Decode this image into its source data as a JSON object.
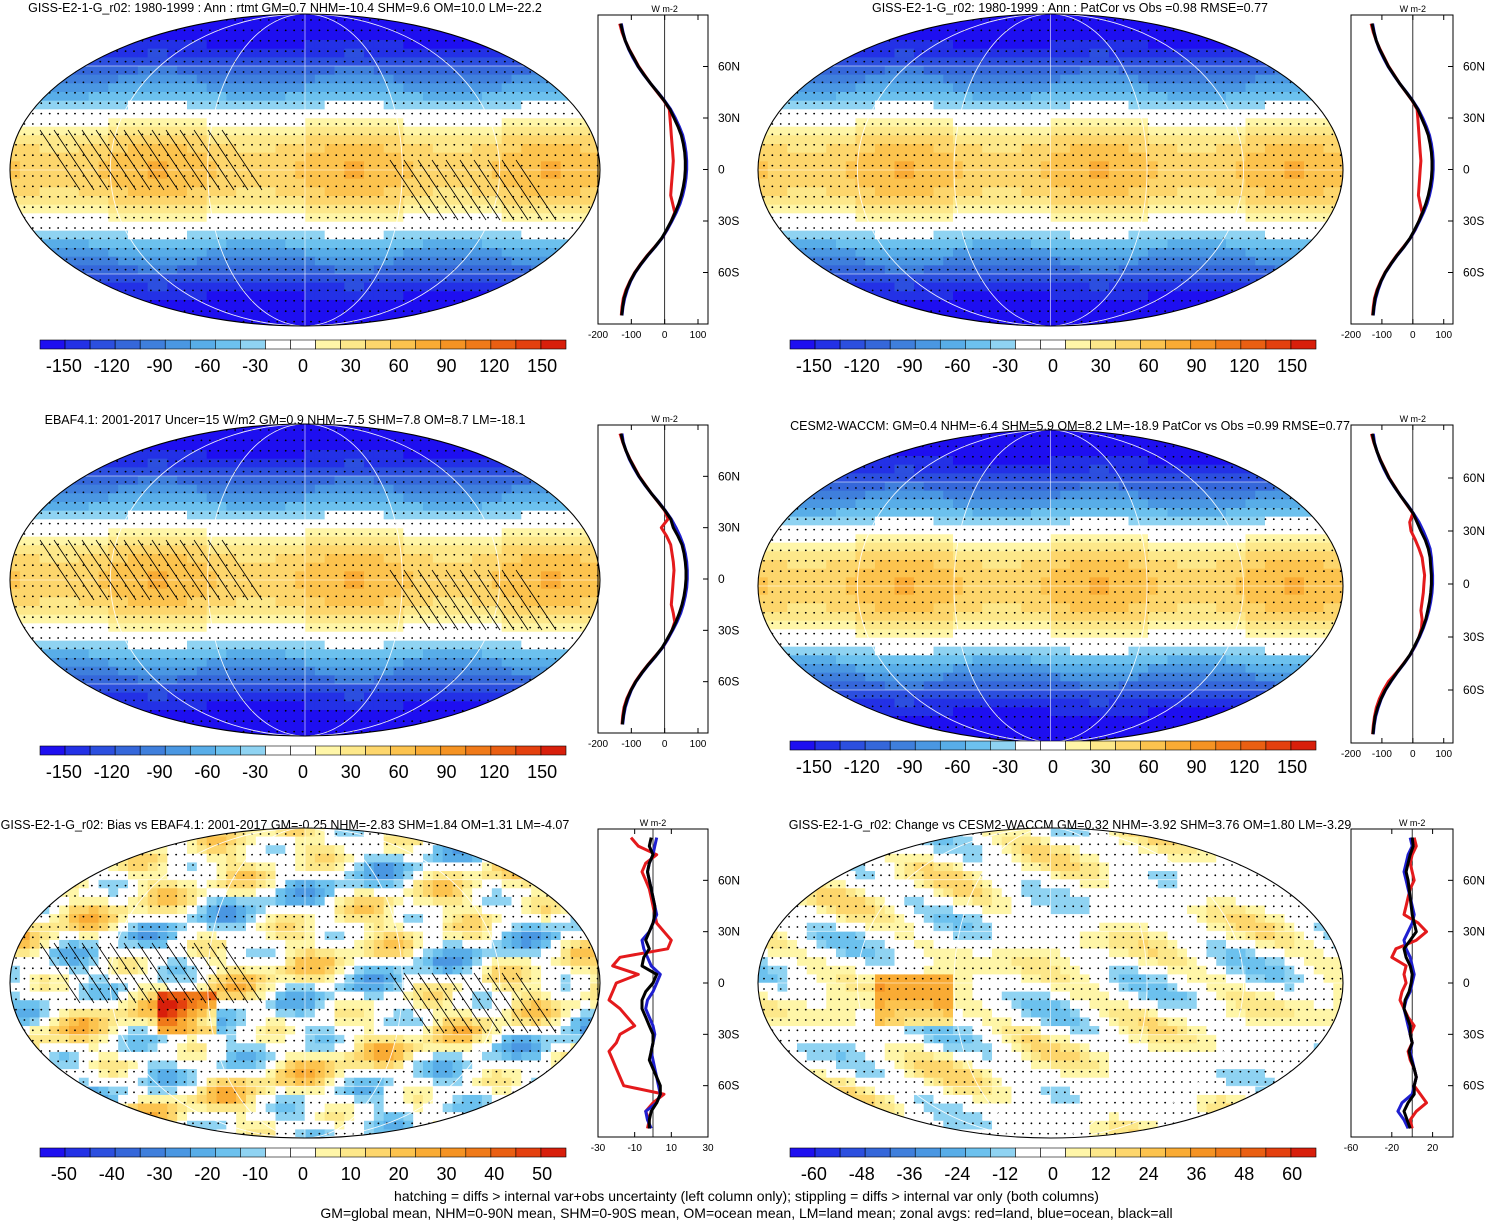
{
  "footnote": {
    "line1": "hatching = diffs > internal var+obs uncertainty (left column only); stippling = diffs > internal var only (both columns)",
    "line2": "GM=global mean, NHM=0-90N mean, SHM=0-90S mean, OM=ocean mean, LM=land mean; zonal avgs: red=land, blue=ocean, black=all"
  },
  "colors": {
    "land": "#e41a1c",
    "ocean": "#1f1fd0",
    "all": "#000000",
    "palette": [
      "#1e0ff0",
      "#2331e6",
      "#2c4fdf",
      "#3567da",
      "#3f7fdc",
      "#4a97e2",
      "#58ade8",
      "#6cc1ee",
      "#8fd3f2",
      "#ffffff",
      "#ffffff",
      "#fff6a8",
      "#fde88a",
      "#fdd66c",
      "#fcc34e",
      "#f9ab34",
      "#f59323",
      "#f07a19",
      "#ea5f12",
      "#e4400e",
      "#d81f0b"
    ]
  },
  "chart_data": [
    {
      "type": "heatmap",
      "title": "GISS-E2-1-G_r02: 1980-1999 : Ann : rtmt GM=0.7 NHM=-10.4 SHM=9.6 OM=10.0 LM=-22.2",
      "field": "toa",
      "hatching": true,
      "colorbar": {
        "range": [
          -165,
          165
        ],
        "ticks": [
          "-150",
          "-120",
          "-90",
          "-60",
          "-30",
          "0",
          "30",
          "60",
          "90",
          "120",
          "150"
        ],
        "tick_values": [
          -150,
          -120,
          -90,
          -60,
          -30,
          0,
          30,
          60,
          90,
          120,
          150
        ]
      },
      "zonal": {
        "unit": "W m-2",
        "xlim": [
          -200,
          130
        ],
        "xticks": [
          "-200",
          "-100",
          "0",
          "100"
        ],
        "xtick_values": [
          -200,
          -100,
          0,
          100
        ],
        "lat": [
          85,
          80,
          75,
          70,
          65,
          60,
          55,
          50,
          45,
          40,
          35,
          30,
          25,
          20,
          15,
          10,
          5,
          0,
          -5,
          -10,
          -15,
          -20,
          -25,
          -30,
          -35,
          -40,
          -45,
          -50,
          -55,
          -60,
          -65,
          -70,
          -75,
          -80,
          -85
        ],
        "ocean": [
          -130,
          -125,
          -118,
          -108,
          -95,
          -80,
          -62,
          -42,
          -20,
          0,
          18,
          32,
          44,
          54,
          60,
          64,
          66,
          66,
          64,
          60,
          54,
          46,
          35,
          22,
          8,
          -8,
          -28,
          -50,
          -70,
          -88,
          -102,
          -112,
          -120,
          -125,
          -128
        ],
        "land": [
          -135,
          -128,
          -118,
          -106,
          -92,
          -78,
          -60,
          -42,
          -22,
          -2,
          14,
          16,
          18,
          20,
          22,
          24,
          26,
          24,
          22,
          20,
          18,
          24,
          30,
          20,
          8,
          -8,
          -30,
          -52,
          -72,
          -90,
          -104,
          -116,
          -124,
          -128,
          -130
        ],
        "all": [
          -132,
          -126,
          -118,
          -107,
          -93,
          -79,
          -61,
          -42,
          -21,
          -1,
          16,
          28,
          40,
          50,
          56,
          60,
          62,
          62,
          60,
          56,
          50,
          42,
          32,
          20,
          6,
          -9,
          -29,
          -51,
          -71,
          -89,
          -103,
          -114,
          -122,
          -126,
          -129
        ]
      }
    },
    {
      "type": "heatmap",
      "title": "GISS-E2-1-G_r02: 1980-1999 : Ann : PatCor vs Obs =0.98 RMSE=0.77",
      "field": "toa",
      "hatching": false,
      "colorbar": {
        "range": [
          -165,
          165
        ],
        "ticks": [
          "-150",
          "-120",
          "-90",
          "-60",
          "-30",
          "0",
          "30",
          "60",
          "90",
          "120",
          "150"
        ],
        "tick_values": [
          -150,
          -120,
          -90,
          -60,
          -30,
          0,
          30,
          60,
          90,
          120,
          150
        ]
      },
      "zonal": {
        "unit": "W m-2",
        "xlim": [
          -200,
          130
        ],
        "xticks": [
          "-200",
          "-100",
          "0",
          "100"
        ],
        "xtick_values": [
          -200,
          -100,
          0,
          100
        ],
        "lat": [
          85,
          80,
          75,
          70,
          65,
          60,
          55,
          50,
          45,
          40,
          35,
          30,
          25,
          20,
          15,
          10,
          5,
          0,
          -5,
          -10,
          -15,
          -20,
          -25,
          -30,
          -35,
          -40,
          -45,
          -50,
          -55,
          -60,
          -65,
          -70,
          -75,
          -80,
          -85
        ],
        "ocean": [
          -130,
          -125,
          -118,
          -108,
          -95,
          -80,
          -62,
          -42,
          -20,
          0,
          18,
          32,
          44,
          54,
          60,
          64,
          66,
          66,
          64,
          60,
          54,
          46,
          35,
          22,
          8,
          -8,
          -28,
          -50,
          -70,
          -88,
          -102,
          -112,
          -120,
          -125,
          -128
        ],
        "land": [
          -135,
          -128,
          -118,
          -106,
          -92,
          -78,
          -60,
          -42,
          -22,
          -2,
          14,
          16,
          18,
          20,
          22,
          24,
          26,
          24,
          22,
          20,
          18,
          24,
          30,
          20,
          8,
          -8,
          -30,
          -52,
          -72,
          -90,
          -104,
          -116,
          -124,
          -128,
          -130
        ],
        "all": [
          -132,
          -126,
          -118,
          -107,
          -93,
          -79,
          -61,
          -42,
          -21,
          -1,
          16,
          28,
          40,
          50,
          56,
          60,
          62,
          62,
          60,
          56,
          50,
          42,
          32,
          20,
          6,
          -9,
          -29,
          -51,
          -71,
          -89,
          -103,
          -114,
          -122,
          -126,
          -129
        ]
      }
    },
    {
      "type": "heatmap",
      "title": "EBAF4.1: 2001-2017 Uncer=15 W/m2 GM=0.9 NHM=-7.5 SHM=7.8 OM=8.7 LM=-18.1",
      "field": "toa",
      "hatching": true,
      "colorbar": {
        "range": [
          -165,
          165
        ],
        "ticks": [
          "-150",
          "-120",
          "-90",
          "-60",
          "-30",
          "0",
          "30",
          "60",
          "90",
          "120",
          "150"
        ],
        "tick_values": [
          -150,
          -120,
          -90,
          -60,
          -30,
          0,
          30,
          60,
          90,
          120,
          150
        ]
      },
      "zonal": {
        "unit": "W m-2",
        "xlim": [
          -200,
          130
        ],
        "xticks": [
          "-200",
          "-100",
          "0",
          "100"
        ],
        "xtick_values": [
          -200,
          -100,
          0,
          100
        ],
        "lat": [
          85,
          80,
          75,
          70,
          65,
          60,
          55,
          50,
          45,
          40,
          35,
          30,
          25,
          20,
          15,
          10,
          5,
          0,
          -5,
          -10,
          -15,
          -20,
          -25,
          -30,
          -35,
          -40,
          -45,
          -50,
          -55,
          -60,
          -65,
          -70,
          -75,
          -80,
          -85
        ],
        "ocean": [
          -128,
          -124,
          -116,
          -106,
          -93,
          -78,
          -60,
          -40,
          -18,
          2,
          20,
          34,
          46,
          56,
          62,
          66,
          68,
          68,
          66,
          62,
          56,
          48,
          37,
          24,
          10,
          -6,
          -26,
          -48,
          -68,
          -86,
          -100,
          -110,
          -118,
          -123,
          -126
        ],
        "land": [
          -134,
          -126,
          -116,
          -104,
          -90,
          -76,
          -58,
          -40,
          -20,
          0,
          10,
          -10,
          6,
          18,
          22,
          26,
          28,
          26,
          24,
          22,
          20,
          26,
          30,
          22,
          10,
          -6,
          -28,
          -50,
          -70,
          -88,
          -102,
          -114,
          -122,
          -126,
          -128
        ],
        "all": [
          -131,
          -125,
          -116,
          -105,
          -91,
          -77,
          -59,
          -40,
          -19,
          1,
          18,
          26,
          40,
          52,
          58,
          62,
          64,
          64,
          62,
          58,
          52,
          44,
          34,
          22,
          8,
          -7,
          -27,
          -49,
          -69,
          -87,
          -101,
          -112,
          -120,
          -124,
          -127
        ]
      }
    },
    {
      "type": "heatmap",
      "title": "CESM2-WACCM: GM=0.4 NHM=-6.4 SHM=5.9 OM=8.2 LM=-18.9 PatCor vs Obs =0.99 RMSE=0.77",
      "field": "toa",
      "hatching": false,
      "colorbar": {
        "range": [
          -165,
          165
        ],
        "ticks": [
          "-150",
          "-120",
          "-90",
          "-60",
          "-30",
          "0",
          "30",
          "60",
          "90",
          "120",
          "150"
        ],
        "tick_values": [
          -150,
          -120,
          -90,
          -60,
          -30,
          0,
          30,
          60,
          90,
          120,
          150
        ]
      },
      "zonal": {
        "unit": "W m-2",
        "xlim": [
          -200,
          130
        ],
        "xticks": [
          "-200",
          "-100",
          "0",
          "100"
        ],
        "xtick_values": [
          -200,
          -100,
          0,
          100
        ],
        "lat": [
          85,
          80,
          75,
          70,
          65,
          60,
          55,
          50,
          45,
          40,
          35,
          30,
          25,
          20,
          15,
          10,
          5,
          0,
          -5,
          -10,
          -15,
          -20,
          -25,
          -30,
          -35,
          -40,
          -45,
          -50,
          -55,
          -60,
          -65,
          -70,
          -75,
          -80,
          -85
        ],
        "ocean": [
          -128,
          -124,
          -116,
          -106,
          -93,
          -78,
          -60,
          -40,
          -18,
          2,
          20,
          34,
          46,
          56,
          60,
          62,
          64,
          64,
          62,
          58,
          52,
          44,
          34,
          22,
          8,
          -8,
          -28,
          -50,
          -70,
          -88,
          -102,
          -112,
          -120,
          -125,
          -128
        ],
        "land": [
          -134,
          -126,
          -116,
          -104,
          -90,
          -76,
          -58,
          -40,
          -20,
          0,
          -10,
          -6,
          8,
          20,
          30,
          34,
          38,
          36,
          34,
          30,
          26,
          30,
          28,
          20,
          8,
          -8,
          -30,
          -52,
          -78,
          -95,
          -108,
          -118,
          -124,
          -128,
          -130
        ],
        "all": [
          -131,
          -125,
          -116,
          -105,
          -91,
          -77,
          -59,
          -40,
          -19,
          1,
          14,
          26,
          40,
          50,
          56,
          58,
          60,
          60,
          58,
          54,
          48,
          42,
          32,
          20,
          6,
          -9,
          -29,
          -51,
          -71,
          -89,
          -103,
          -114,
          -122,
          -126,
          -129
        ]
      }
    },
    {
      "type": "heatmap",
      "title": "GISS-E2-1-G_r02: Bias vs EBAF4.1: 2001-2017 GM=-0.25 NHM=-2.83 SHM=1.84 OM=1.31 LM=-4.07",
      "field": "bias",
      "hatching": true,
      "colorbar": {
        "range": [
          -55,
          55
        ],
        "ticks": [
          "-50",
          "-40",
          "-30",
          "-20",
          "-10",
          "0",
          "10",
          "20",
          "30",
          "40",
          "50"
        ],
        "tick_values": [
          -50,
          -40,
          -30,
          -20,
          -10,
          0,
          10,
          20,
          30,
          40,
          50
        ]
      },
      "zonal": {
        "unit": "W m-2",
        "xlim": [
          -30,
          30
        ],
        "xticks": [
          "-30",
          "-10",
          "10",
          "30"
        ],
        "xtick_values": [
          -30,
          -10,
          10,
          30
        ],
        "lat": [
          85,
          80,
          75,
          70,
          65,
          60,
          55,
          50,
          45,
          40,
          35,
          30,
          25,
          20,
          15,
          10,
          5,
          0,
          -5,
          -10,
          -15,
          -20,
          -25,
          -30,
          -35,
          -40,
          -45,
          -50,
          -55,
          -60,
          -65,
          -70,
          -75,
          -80,
          -85
        ],
        "ocean": [
          2,
          1,
          0,
          -2,
          -3,
          -2,
          -1,
          0,
          1,
          2,
          0,
          -2,
          -6,
          -5,
          -3,
          -1,
          4,
          2,
          0,
          -3,
          -4,
          -2,
          0,
          1,
          0,
          -1,
          0,
          1,
          2,
          3,
          4,
          2,
          -4,
          -3,
          -1
        ],
        "land": [
          -12,
          -8,
          2,
          -4,
          -6,
          -4,
          -2,
          -1,
          0,
          1,
          2,
          6,
          10,
          8,
          -18,
          -22,
          -8,
          -20,
          -22,
          -24,
          -18,
          -14,
          -10,
          -18,
          -20,
          -24,
          -22,
          -20,
          -18,
          -16,
          6,
          0,
          -4,
          -2,
          -3
        ],
        "all": [
          -1,
          -2,
          0,
          -2,
          -3,
          -2,
          -1,
          0,
          1,
          1,
          0,
          -2,
          -4,
          -2,
          -5,
          -6,
          2,
          0,
          -4,
          -6,
          -6,
          -4,
          -2,
          0,
          0,
          -1,
          -2,
          0,
          2,
          4,
          4,
          2,
          -1,
          -2,
          -2
        ]
      }
    },
    {
      "type": "heatmap",
      "title": "GISS-E2-1-G_r02: Change vs CESM2-WACCM GM=0.32 NHM=-3.92 SHM=3.76 OM=1.80 LM=-3.29",
      "field": "change",
      "hatching": false,
      "colorbar": {
        "range": [
          -66,
          66
        ],
        "ticks": [
          "-60",
          "-48",
          "-36",
          "-24",
          "-12",
          "0",
          "12",
          "24",
          "36",
          "48",
          "60"
        ],
        "tick_values": [
          -60,
          -48,
          -36,
          -24,
          -12,
          0,
          12,
          24,
          36,
          48,
          60
        ]
      },
      "zonal": {
        "unit": "W m-2",
        "xlim": [
          -60,
          40
        ],
        "xticks": [
          "-60",
          "-20",
          "20"
        ],
        "xtick_values": [
          -60,
          -20,
          20
        ],
        "lat": [
          85,
          80,
          75,
          70,
          65,
          60,
          55,
          50,
          45,
          40,
          35,
          30,
          25,
          20,
          15,
          10,
          5,
          0,
          -5,
          -10,
          -15,
          -20,
          -25,
          -30,
          -35,
          -40,
          -45,
          -50,
          -55,
          -60,
          -65,
          -70,
          -75,
          -80,
          -85
        ],
        "ocean": [
          -2,
          0,
          -4,
          -6,
          -8,
          -6,
          -4,
          -2,
          0,
          2,
          0,
          -4,
          -8,
          -6,
          -2,
          0,
          2,
          0,
          -2,
          -6,
          -8,
          -6,
          -4,
          -2,
          0,
          -2,
          0,
          2,
          4,
          2,
          0,
          -10,
          -14,
          -8,
          -4
        ],
        "land": [
          2,
          4,
          0,
          -2,
          0,
          2,
          -2,
          -4,
          -6,
          -8,
          6,
          14,
          4,
          -16,
          -20,
          -6,
          -8,
          -6,
          -10,
          -12,
          -8,
          -4,
          2,
          -2,
          0,
          -4,
          -2,
          2,
          4,
          2,
          8,
          14,
          4,
          -2,
          0
        ],
        "all": [
          0,
          1,
          -2,
          -4,
          -6,
          -4,
          -3,
          -2,
          -1,
          0,
          2,
          4,
          -2,
          -8,
          -6,
          -2,
          0,
          -1,
          -3,
          -7,
          -8,
          -5,
          -2,
          -2,
          0,
          -3,
          -1,
          2,
          4,
          2,
          2,
          -4,
          -8,
          -5,
          -2
        ]
      }
    }
  ]
}
